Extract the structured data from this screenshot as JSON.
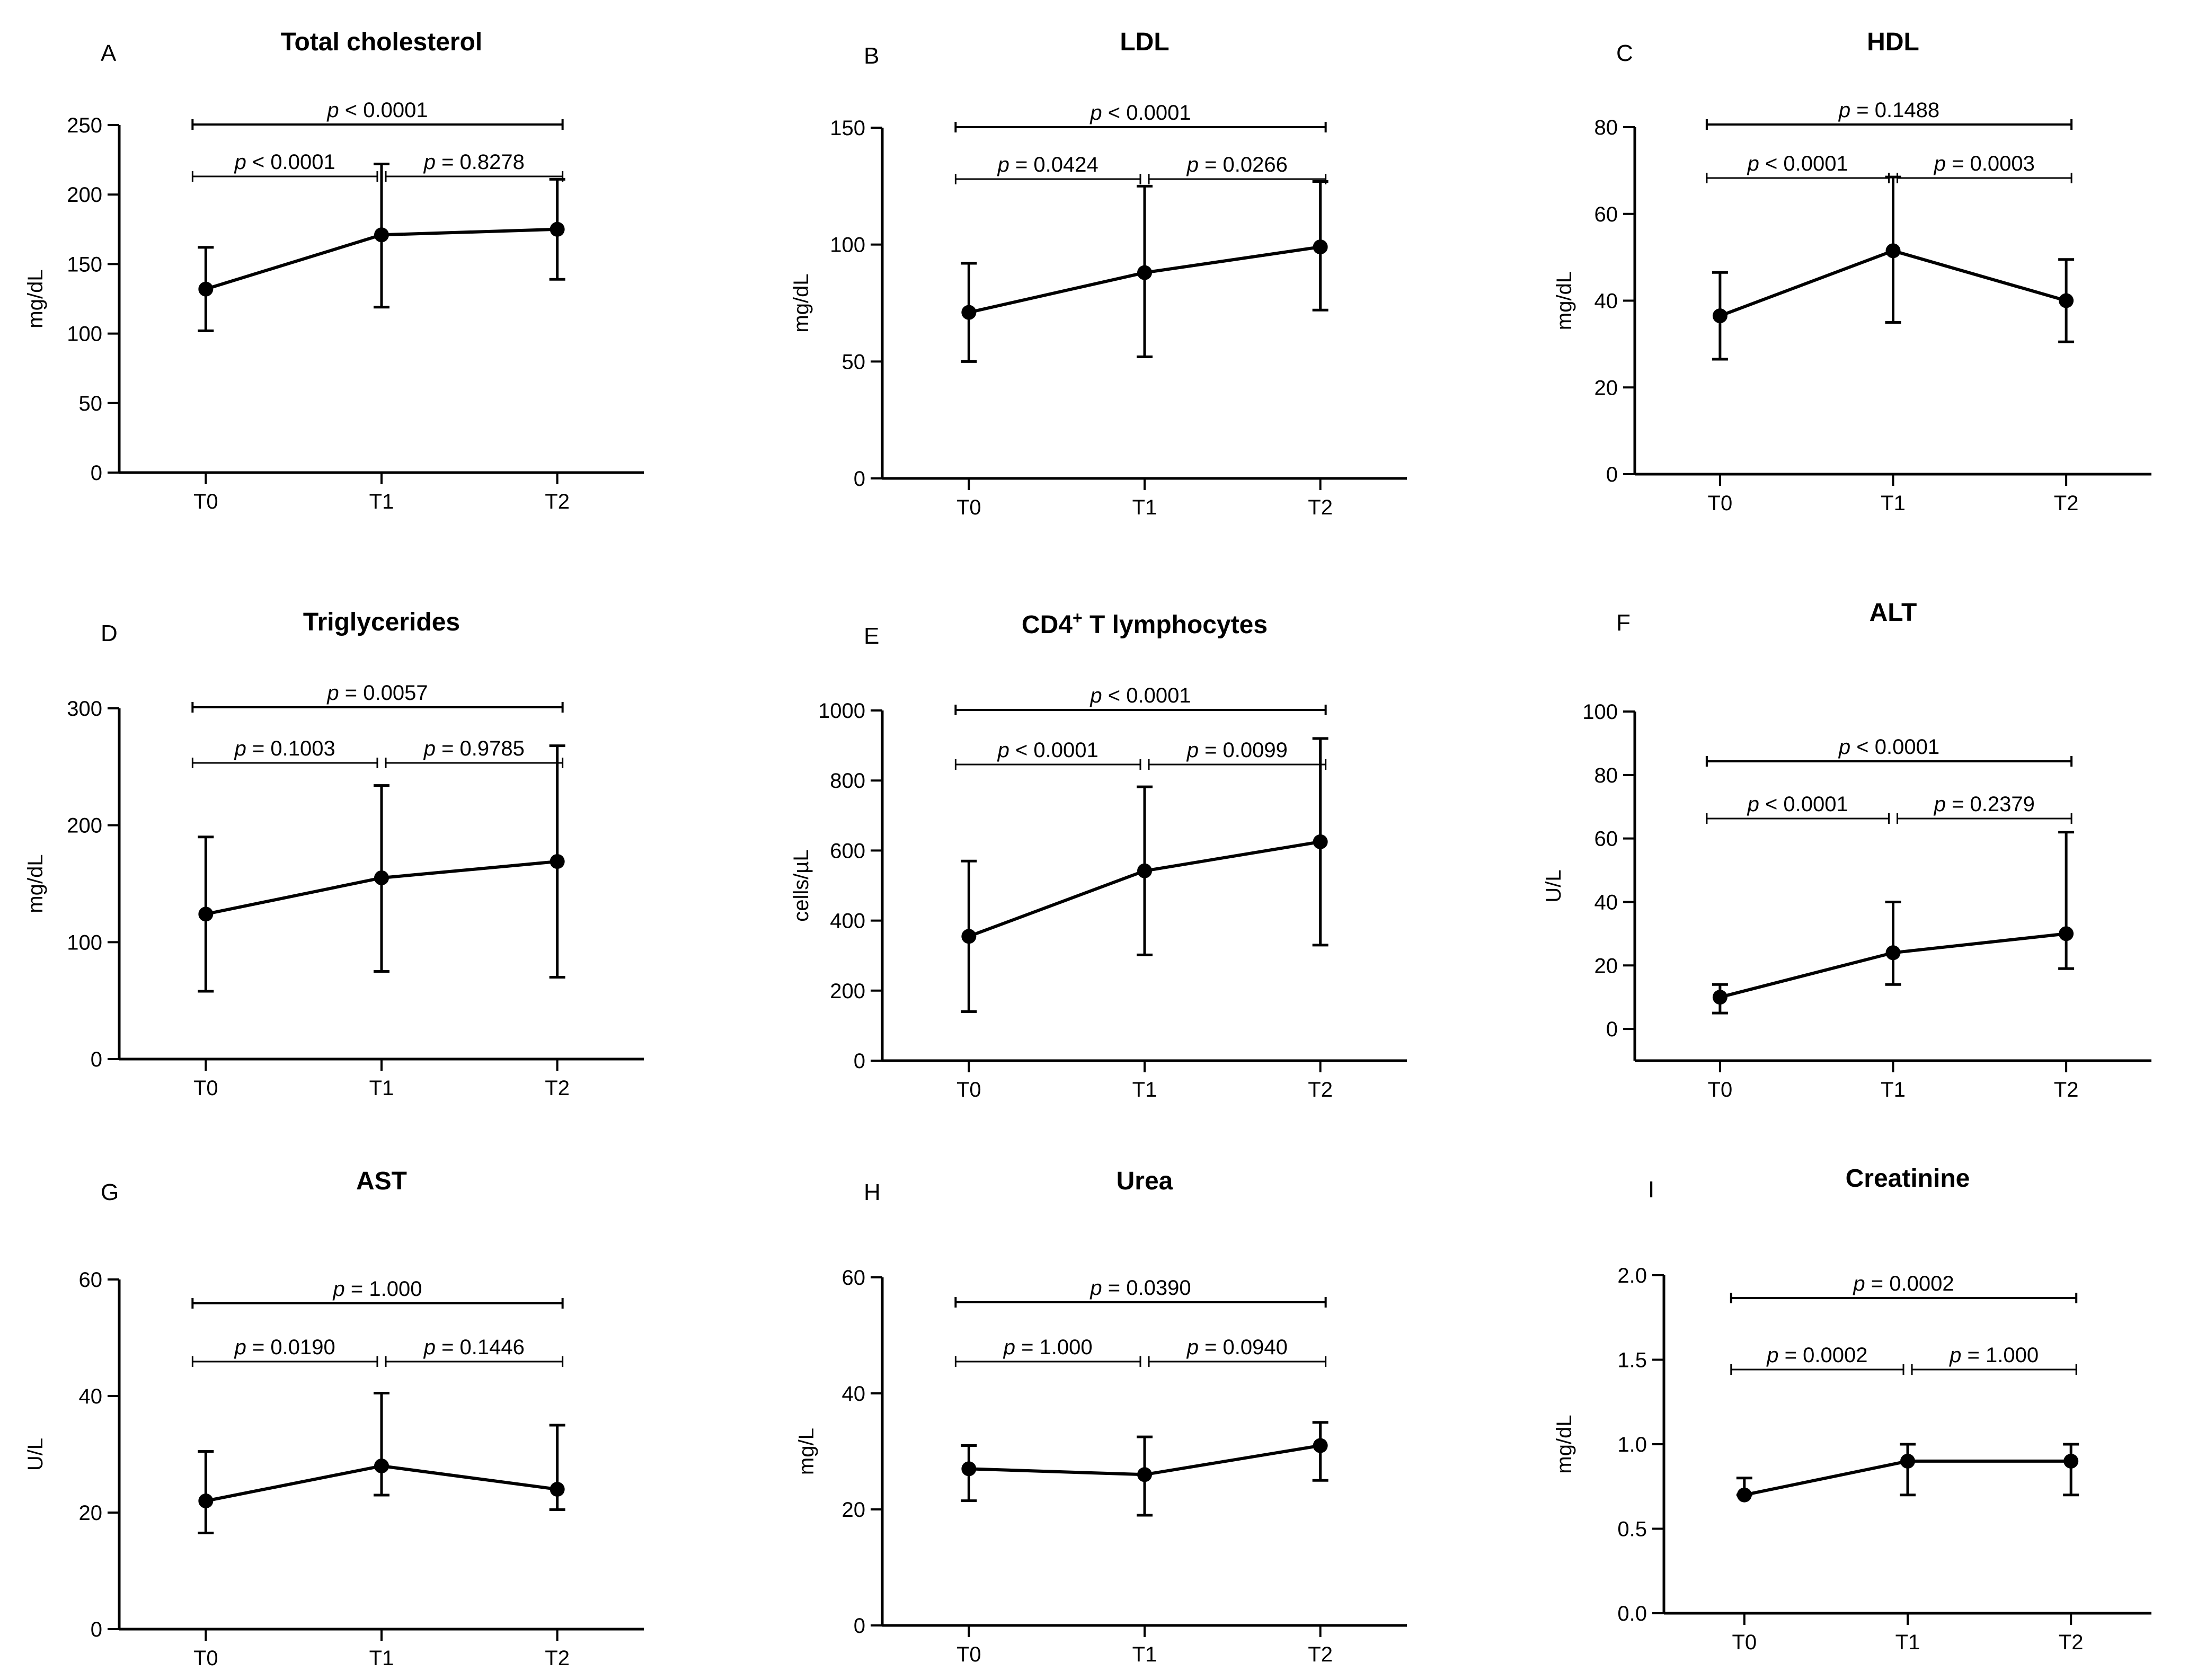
{
  "figure_description": "",
  "chart_data": [
    {
      "panel": "A",
      "title": "Total cholesterol",
      "ylabel": "mg/dL",
      "type": "line",
      "categories": [
        "T0",
        "T1",
        "T2"
      ],
      "yticks": [
        "0",
        "50",
        "100",
        "150",
        "200",
        "250"
      ],
      "ylim": [
        0,
        250
      ],
      "values": [
        132,
        171,
        175
      ],
      "err_low": [
        102,
        119,
        139
      ],
      "err_high": [
        162,
        222,
        211
      ],
      "comparisons": [
        {
          "from": 0,
          "to": 2,
          "p": "< 0.0001"
        },
        {
          "from": 0,
          "to": 1,
          "p": "< 0.0001"
        },
        {
          "from": 1,
          "to": 2,
          "p": "= 0.8278"
        }
      ]
    },
    {
      "panel": "B",
      "title": "LDL",
      "ylabel": "mg/dL",
      "type": "line",
      "categories": [
        "T0",
        "T1",
        "T2"
      ],
      "yticks": [
        "0",
        "50",
        "100",
        "150"
      ],
      "ylim": [
        0,
        150
      ],
      "values": [
        71,
        88,
        99
      ],
      "err_low": [
        50,
        52,
        72
      ],
      "err_high": [
        92,
        125,
        127
      ],
      "comparisons": [
        {
          "from": 0,
          "to": 2,
          "p": "< 0.0001"
        },
        {
          "from": 0,
          "to": 1,
          "p": "= 0.0424"
        },
        {
          "from": 1,
          "to": 2,
          "p": "= 0.0266"
        }
      ]
    },
    {
      "panel": "C",
      "title": "HDL",
      "ylabel": "mg/dL",
      "type": "line",
      "categories": [
        "T0",
        "T1",
        "T2"
      ],
      "yticks": [
        "0",
        "20",
        "40",
        "60",
        "80"
      ],
      "ylim": [
        0,
        80
      ],
      "values": [
        36.5,
        51.5,
        40
      ],
      "err_low": [
        26.5,
        35,
        30.5
      ],
      "err_high": [
        46.5,
        68.5,
        49.5
      ],
      "comparisons": [
        {
          "from": 0,
          "to": 2,
          "p": "= 0.1488"
        },
        {
          "from": 0,
          "to": 1,
          "p": "< 0.0001"
        },
        {
          "from": 1,
          "to": 2,
          "p": "= 0.0003"
        }
      ]
    },
    {
      "panel": "D",
      "title": "Triglycerides",
      "ylabel": "mg/dL",
      "type": "line",
      "categories": [
        "T0",
        "T1",
        "T2"
      ],
      "yticks": [
        "0",
        "100",
        "200",
        "300"
      ],
      "ylim": [
        0,
        300
      ],
      "values": [
        124,
        155,
        169
      ],
      "err_low": [
        58,
        75,
        70
      ],
      "err_high": [
        190,
        234,
        268
      ],
      "comparisons": [
        {
          "from": 0,
          "to": 2,
          "p": "= 0.0057"
        },
        {
          "from": 0,
          "to": 1,
          "p": "= 0.1003"
        },
        {
          "from": 1,
          "to": 2,
          "p": "= 0.9785"
        }
      ]
    },
    {
      "panel": "E",
      "title": "CD4",
      "title_sup": "+",
      "title_rest": " T lymphocytes",
      "ylabel": "cells/µL",
      "type": "line",
      "categories": [
        "T0",
        "T1",
        "T2"
      ],
      "yticks": [
        "0",
        "200",
        "400",
        "600",
        "800",
        "1000"
      ],
      "ylim": [
        0,
        1000
      ],
      "values": [
        355,
        542,
        625
      ],
      "err_low": [
        140,
        302,
        330
      ],
      "err_high": [
        570,
        782,
        920
      ],
      "comparisons": [
        {
          "from": 0,
          "to": 2,
          "p": "< 0.0001"
        },
        {
          "from": 0,
          "to": 1,
          "p": "< 0.0001"
        },
        {
          "from": 1,
          "to": 2,
          "p": "= 0.0099"
        }
      ]
    },
    {
      "panel": "F",
      "title": "ALT",
      "ylabel": "U/L",
      "type": "line",
      "categories": [
        "T0",
        "T1",
        "T2"
      ],
      "yticks": [
        "0",
        "20",
        "40",
        "60",
        "80",
        "100"
      ],
      "ylim": [
        -10,
        100
      ],
      "values": [
        10,
        24,
        30
      ],
      "err_low": [
        5,
        14,
        19
      ],
      "err_high": [
        14,
        40,
        62
      ],
      "comparisons": [
        {
          "from": 0,
          "to": 2,
          "p": "< 0.0001"
        },
        {
          "from": 0,
          "to": 1,
          "p": "< 0.0001"
        },
        {
          "from": 1,
          "to": 2,
          "p": "= 0.2379"
        }
      ]
    },
    {
      "panel": "G",
      "title": "AST",
      "ylabel": "U/L",
      "type": "line",
      "categories": [
        "T0",
        "T1",
        "T2"
      ],
      "yticks": [
        "0",
        "20",
        "40",
        "60"
      ],
      "ylim": [
        0,
        60
      ],
      "values": [
        22,
        28,
        24
      ],
      "err_low": [
        16.5,
        23,
        20.5
      ],
      "err_high": [
        30.5,
        40.5,
        35
      ],
      "comparisons": [
        {
          "from": 0,
          "to": 2,
          "p": "= 1.000"
        },
        {
          "from": 0,
          "to": 1,
          "p": "= 0.0190"
        },
        {
          "from": 1,
          "to": 2,
          "p": "= 0.1446"
        }
      ]
    },
    {
      "panel": "H",
      "title": "Urea",
      "ylabel": "mg/L",
      "type": "line",
      "categories": [
        "T0",
        "T1",
        "T2"
      ],
      "yticks": [
        "0",
        "20",
        "40",
        "60"
      ],
      "ylim": [
        0,
        60
      ],
      "values": [
        27,
        26,
        31
      ],
      "err_low": [
        21.5,
        19,
        25
      ],
      "err_high": [
        31,
        32.5,
        35
      ],
      "comparisons": [
        {
          "from": 0,
          "to": 2,
          "p": "= 0.0390"
        },
        {
          "from": 0,
          "to": 1,
          "p": "= 1.000"
        },
        {
          "from": 1,
          "to": 2,
          "p": "= 0.0940"
        }
      ]
    },
    {
      "panel": "I",
      "title": "Creatinine",
      "ylabel": "mg/dL",
      "type": "line",
      "categories": [
        "T0",
        "T1",
        "T2"
      ],
      "yticks": [
        "0.0",
        "0.5",
        "1.0",
        "1.5",
        "2.0"
      ],
      "ylim": [
        0,
        2.0
      ],
      "values": [
        0.7,
        0.9,
        0.9
      ],
      "err_low": [
        0.7,
        0.7,
        0.7
      ],
      "err_high": [
        0.8,
        1.0,
        1.0
      ],
      "comparisons": [
        {
          "from": 0,
          "to": 2,
          "p": "= 0.0002"
        },
        {
          "from": 0,
          "to": 1,
          "p": "= 0.0002"
        },
        {
          "from": 1,
          "to": 2,
          "p": "= 1.000"
        }
      ]
    }
  ]
}
